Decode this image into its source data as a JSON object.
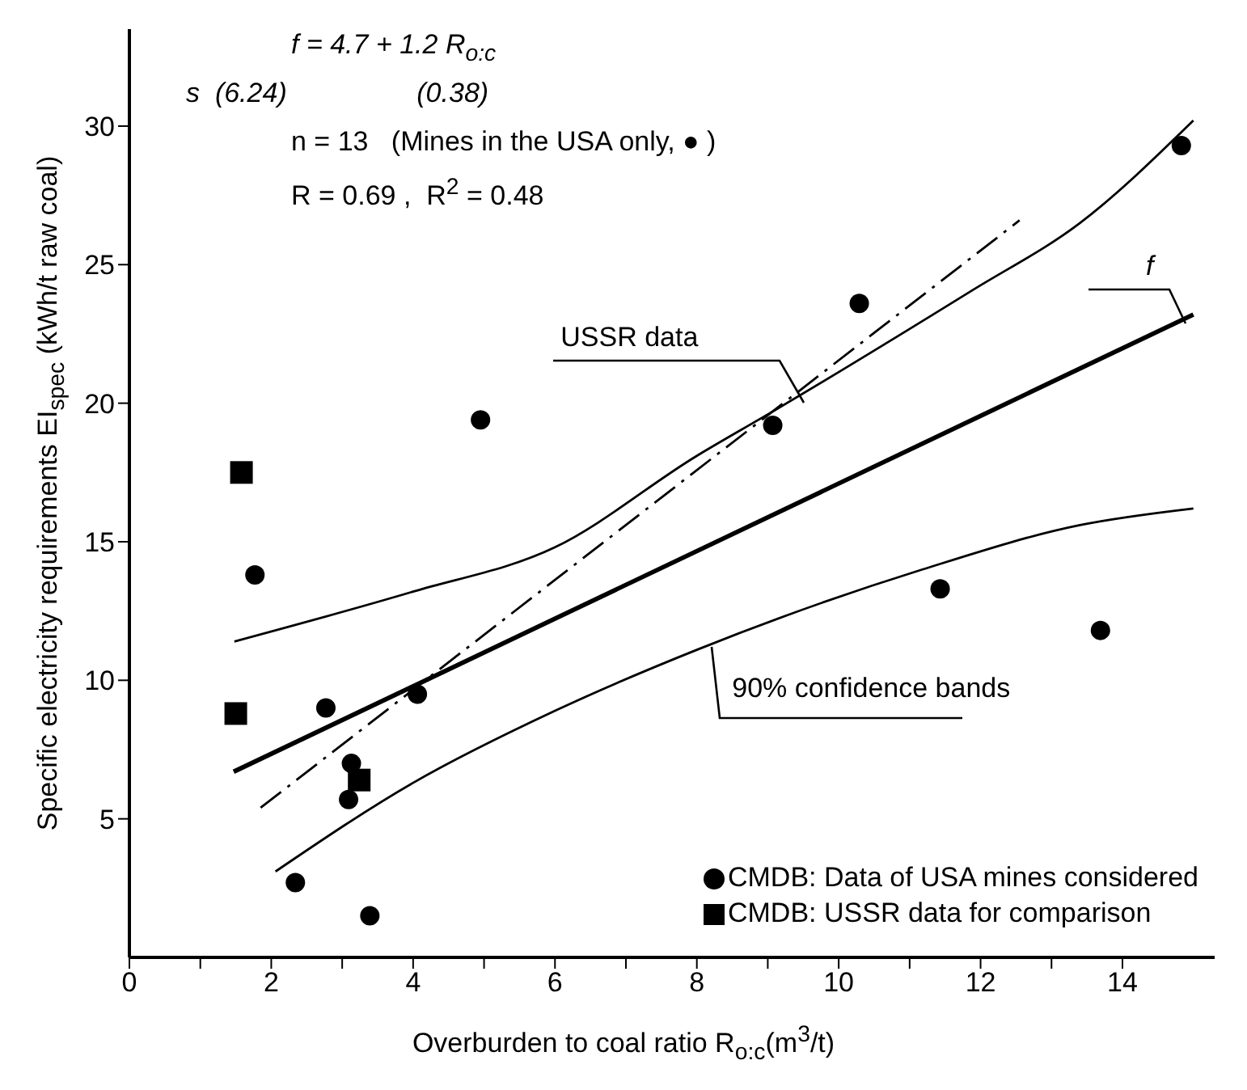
{
  "chart_data": {
    "type": "scatter",
    "xlabel": "Overburden to coal ratio R$_{o:c}$(m$^{3}$/t)",
    "ylabel": "Specific electricity requirements EI$_{spec}$ (kWh/t raw coal)",
    "xlim": [
      0,
      15.3
    ],
    "ylim": [
      0,
      33.5
    ],
    "xticks": [
      0,
      {
        "value": 1,
        "label": null
      },
      2,
      {
        "value": 3,
        "label": null
      },
      4,
      {
        "value": 5,
        "label": null
      },
      6,
      {
        "value": 7,
        "label": null
      },
      8,
      {
        "value": 9,
        "label": null
      },
      10,
      {
        "value": 11,
        "label": null
      },
      12,
      {
        "value": 13,
        "label": null
      },
      14
    ],
    "yticks": [
      5,
      10,
      15,
      20,
      25,
      30
    ],
    "legend": "bottom right",
    "series": [
      {
        "name": "CMDB: Data of USA mines considered",
        "marker": "circle",
        "color": "#000000",
        "x": [
          1.77,
          2.77,
          3.13,
          3.09,
          4.06,
          2.34,
          3.39,
          4.95,
          10.29,
          14.83,
          9.07,
          11.43,
          13.69
        ],
        "values": [
          13.8,
          9.0,
          7.0,
          5.7,
          9.5,
          2.7,
          1.5,
          19.4,
          23.6,
          29.3,
          19.2,
          13.3,
          11.8
        ]
      },
      {
        "name": "CMDB: USSR data for comparison",
        "marker": "square",
        "color": "#000000",
        "x": [
          1.58,
          1.5,
          3.24
        ],
        "values": [
          17.5,
          8.8,
          6.4
        ]
      },
      {
        "type": "line",
        "marker": "none",
        "line_style": "solid",
        "color": "#000000",
        "x": [
          1.47,
          15.0
        ],
        "values": [
          6.7,
          23.2
        ]
      },
      {
        "type": "line",
        "marker": "none",
        "line_style": "solid",
        "color": "#000000",
        "x": [
          1.48,
          4,
          6,
          8,
          9.07,
          11.9,
          13.4,
          15.0
        ],
        "values": [
          11.4,
          13.2,
          14.8,
          18.1,
          19.7,
          24.1,
          26.5,
          30.2
        ]
      },
      {
        "type": "line",
        "marker": "none",
        "line_style": "solid",
        "color": "#000000",
        "x": [
          2.06,
          4,
          6,
          8,
          11.18,
          13.4,
          15.0
        ],
        "values": [
          3.1,
          6.3,
          8.9,
          11.1,
          14.0,
          15.6,
          16.2
        ]
      },
      {
        "type": "line",
        "marker": "none",
        "line_style": "dashed",
        "color": "#000000",
        "x": [
          1.85,
          12.55
        ],
        "values": [
          5.4,
          26.6
        ]
      }
    ],
    "annotations": [
      "f = 4.7 + 1.2 R$_{o:c}$",
      "s  (6.24)                 (0.38)",
      "n = 13   (Mines in the USA only, ● )",
      "R = 0.69 ,  R$^{2}$ = 0.48",
      {
        "text": "USSR data",
        "x": 9.5,
        "y": 20.0
      },
      {
        "text": "f",
        "x": 14.9,
        "y": 22.9
      },
      {
        "text": "90% confidence bands",
        "x": 8.2,
        "y": 11.2
      }
    ]
  }
}
